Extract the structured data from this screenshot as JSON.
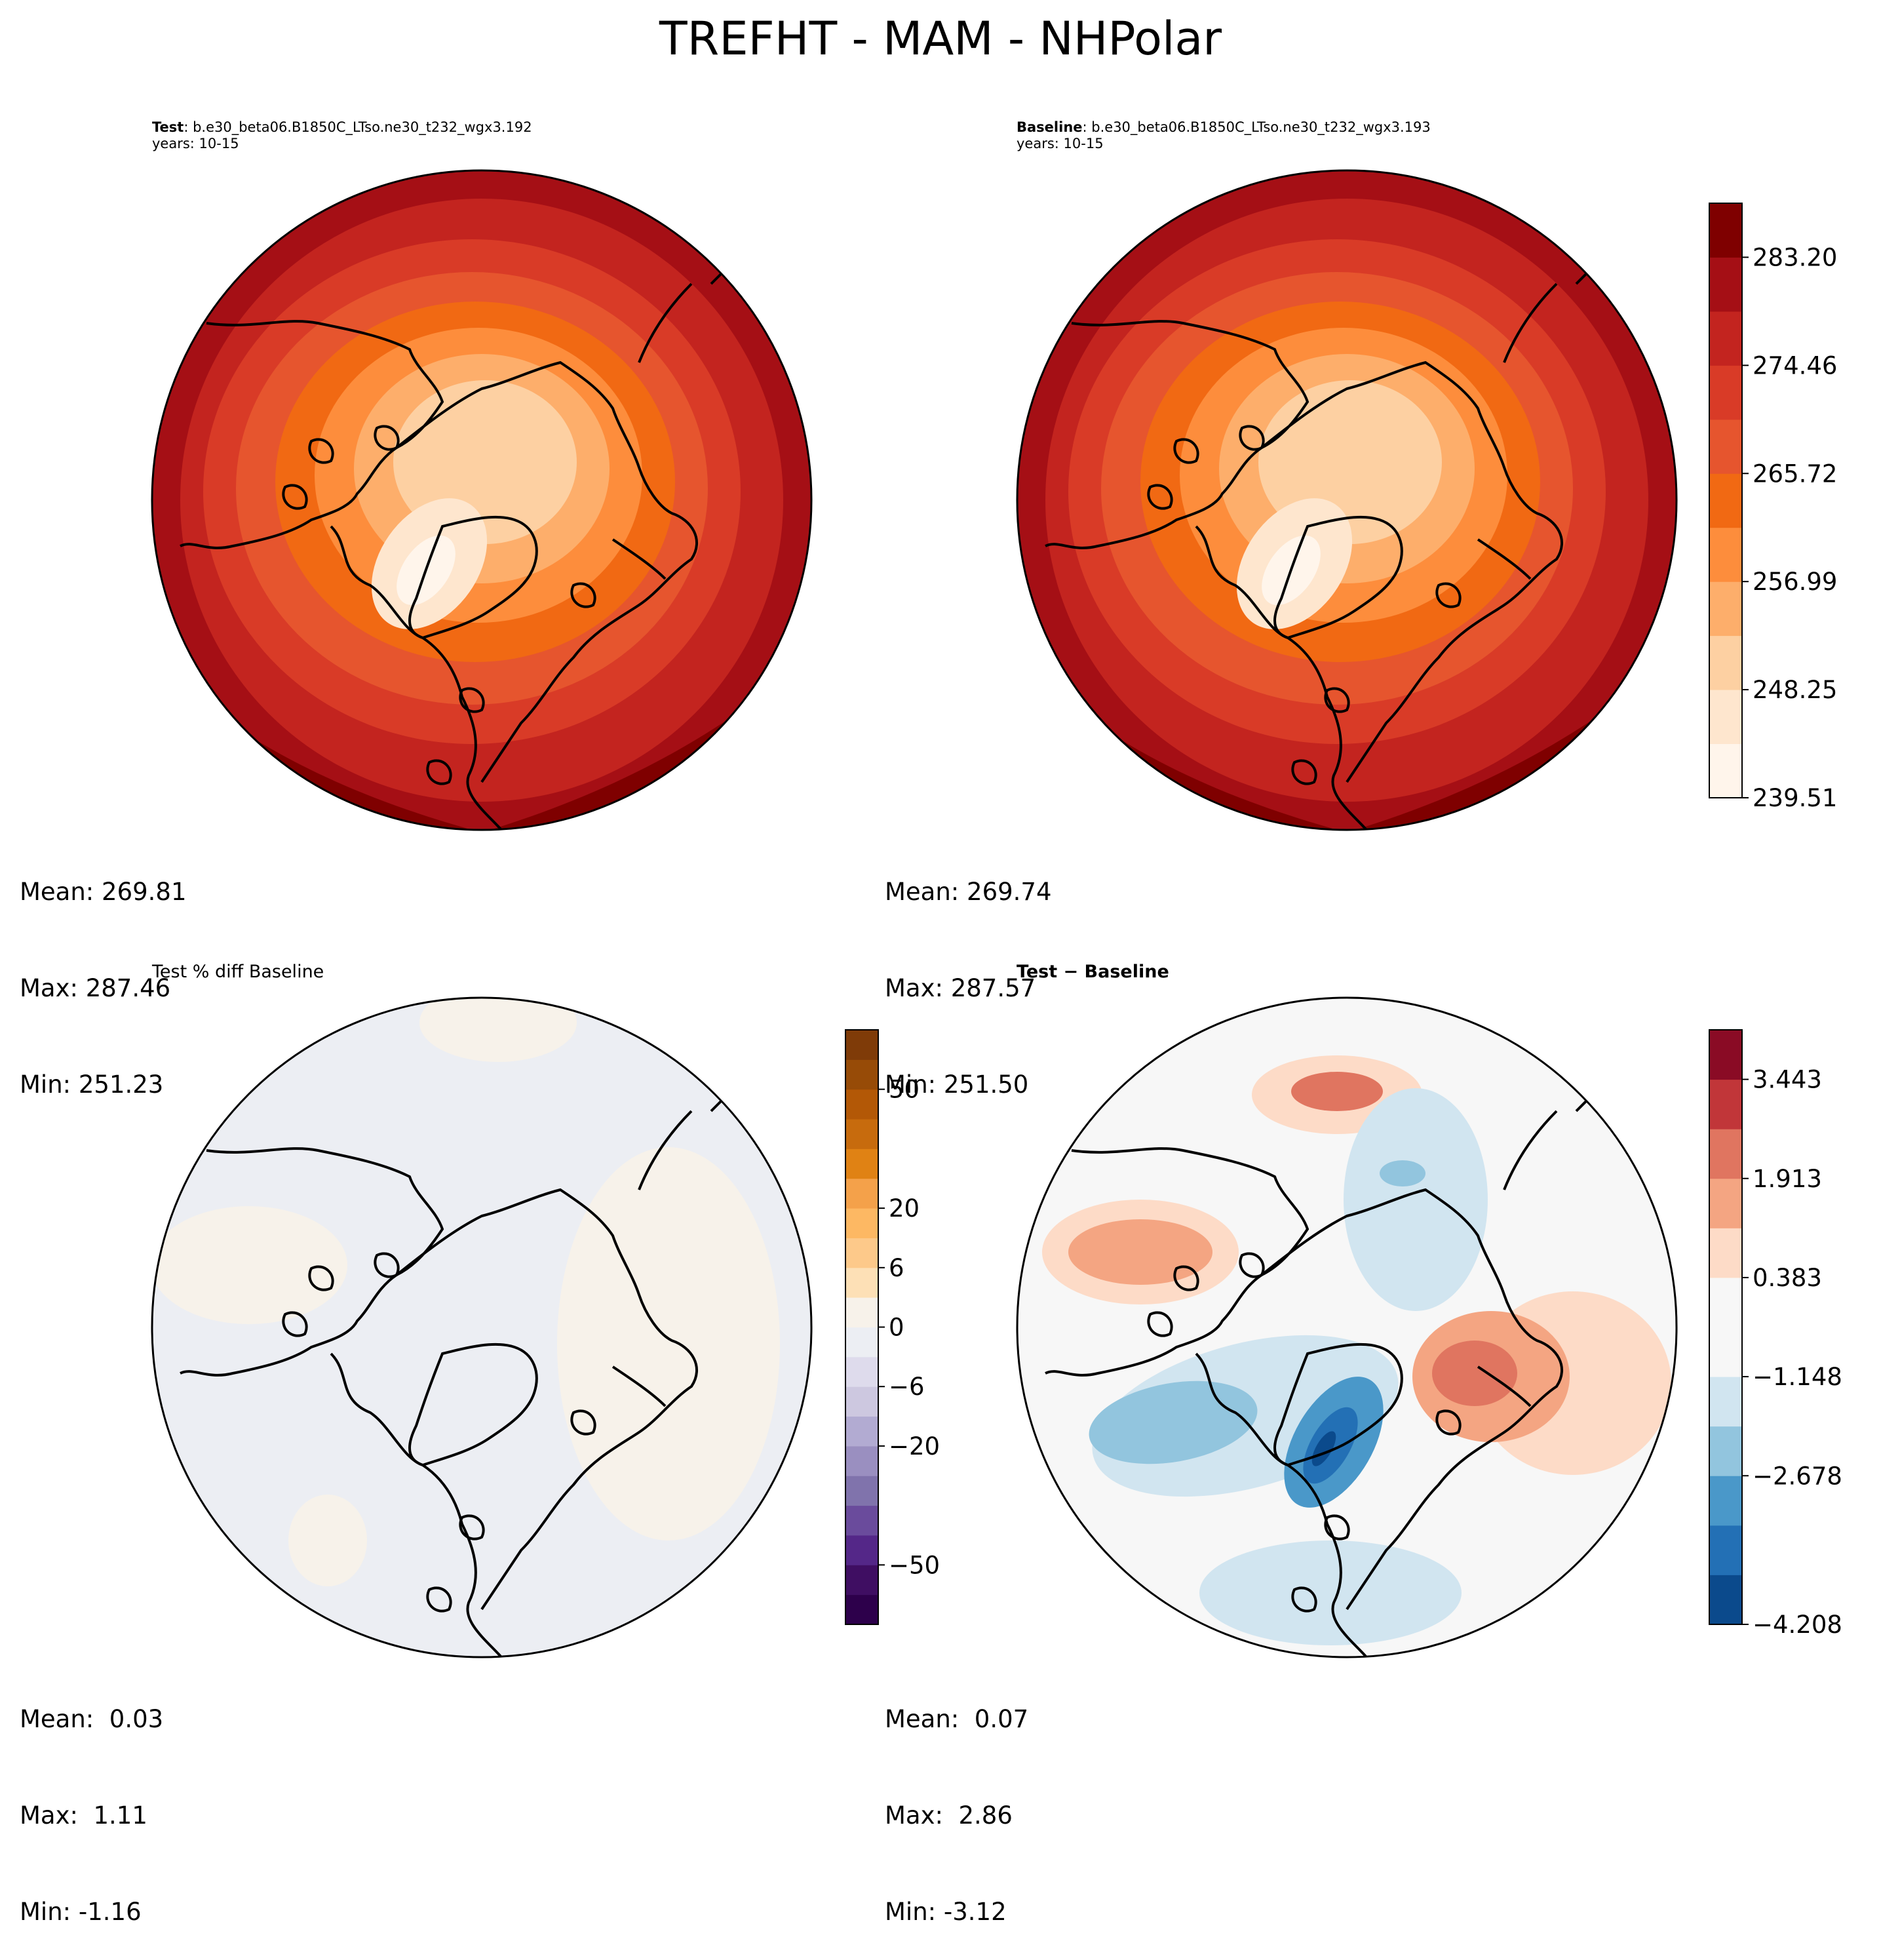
{
  "figure": {
    "title": "TREFHT - MAM - NHPolar"
  },
  "panels": {
    "test": {
      "label": "Test",
      "case": ": b.e30_beta06.B1850C_LTso.ne30_t232_wgx3.192",
      "years": "years: 10-15",
      "stats": {
        "mean": "Mean: 269.81",
        "max": "Max: 287.46",
        "min": "Min: 251.23"
      }
    },
    "baseline": {
      "label": "Baseline",
      "case": ": b.e30_beta06.B1850C_LTso.ne30_t232_wgx3.193",
      "years": "years: 10-15",
      "stats": {
        "mean": "Mean: 269.74",
        "max": "Max: 287.57",
        "min": "Min: 251.50"
      }
    },
    "pctdiff": {
      "title": "Test % diff Baseline",
      "stats": {
        "mean": "Mean:  0.03",
        "max": "Max:  1.11",
        "min": "Min: -1.16"
      }
    },
    "diff": {
      "title": "Test − Baseline",
      "stats": {
        "mean": "Mean:  0.07",
        "max": "Max:  2.86",
        "min": "Min: -3.12"
      }
    }
  },
  "chart_data": [
    {
      "type": "heatmap",
      "name": "test",
      "projection": "north polar stereographic",
      "variable": "TREFHT",
      "season": "MAM",
      "colormap": "Reds",
      "colorbar_ticks": [
        "239.51",
        "248.25",
        "256.99",
        "265.72",
        "274.46",
        "283.20"
      ],
      "levels": 11,
      "mean": 269.81,
      "max": 287.46,
      "min": 251.23
    },
    {
      "type": "heatmap",
      "name": "baseline",
      "projection": "north polar stereographic",
      "variable": "TREFHT",
      "season": "MAM",
      "colormap": "Reds",
      "colorbar_ticks": [
        "239.51",
        "248.25",
        "256.99",
        "265.72",
        "274.46",
        "283.20"
      ],
      "levels": 11,
      "mean": 269.74,
      "max": 287.57,
      "min": 251.5
    },
    {
      "type": "heatmap",
      "name": "pct_diff",
      "projection": "north polar stereographic",
      "colormap": "PuOr",
      "colorbar_ticks": [
        "50",
        "20",
        "6",
        "0",
        "−6",
        "−20",
        "−50"
      ],
      "mean": 0.03,
      "max": 1.11,
      "min": -1.16
    },
    {
      "type": "heatmap",
      "name": "diff",
      "projection": "north polar stereographic",
      "colormap": "RdBu_r",
      "colorbar_ticks": [
        "3.443",
        "1.913",
        "0.383",
        "−1.148",
        "−2.678",
        "−4.208"
      ],
      "levels": 12,
      "mean": 0.07,
      "max": 2.86,
      "min": -3.12
    }
  ],
  "colors": {
    "reds": [
      "#fff5eb",
      "#fee6ce",
      "#fdd0a2",
      "#fdae6b",
      "#fd8d3c",
      "#f16913",
      "#e6552e",
      "#d93b27",
      "#c3241f",
      "#a50f15",
      "#7f0000"
    ],
    "puor": [
      "#2d004b",
      "#3f0e62",
      "#542788",
      "#6a4b9c",
      "#8073ac",
      "#9a8fc0",
      "#b2abd2",
      "#cdc8e0",
      "#dedbec",
      "#eceef3",
      "#f7f2ea",
      "#fde0b6",
      "#fdc98a",
      "#fdb863",
      "#f4a14a",
      "#e08214",
      "#c76b0d",
      "#b35806",
      "#974b07",
      "#7f3b08"
    ],
    "rdbu": [
      "#0b4a8c",
      "#2370b5",
      "#4a98c9",
      "#92c5de",
      "#d1e5f0",
      "#f7f7f7",
      "#f7f7f7",
      "#fddbc7",
      "#f4a582",
      "#e07560",
      "#c13639",
      "#8a0b25"
    ]
  }
}
